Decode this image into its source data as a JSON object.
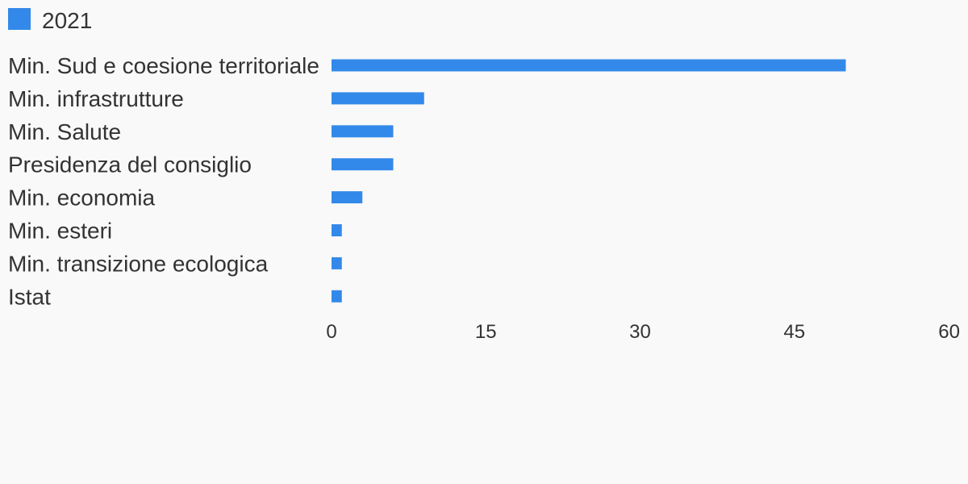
{
  "colors": {
    "bar": "#3389e9",
    "text": "#333333",
    "background": "#f9f9f9"
  },
  "chart_data": {
    "type": "bar",
    "orientation": "horizontal",
    "legend_position": "top-left",
    "grid": false,
    "categories": [
      "Min. Sud e coesione territoriale",
      "Min. infrastrutture",
      "Min. Salute",
      "Presidenza del consiglio",
      "Min. economia",
      "Min. esteri",
      "Min. transizione ecologica",
      "Istat"
    ],
    "series": [
      {
        "name": "2021",
        "values": [
          50,
          9,
          6,
          6,
          3,
          1,
          1,
          1
        ]
      }
    ],
    "xlim": [
      0,
      60
    ],
    "xticks": [
      "0",
      "15",
      "30",
      "45",
      "60"
    ]
  }
}
